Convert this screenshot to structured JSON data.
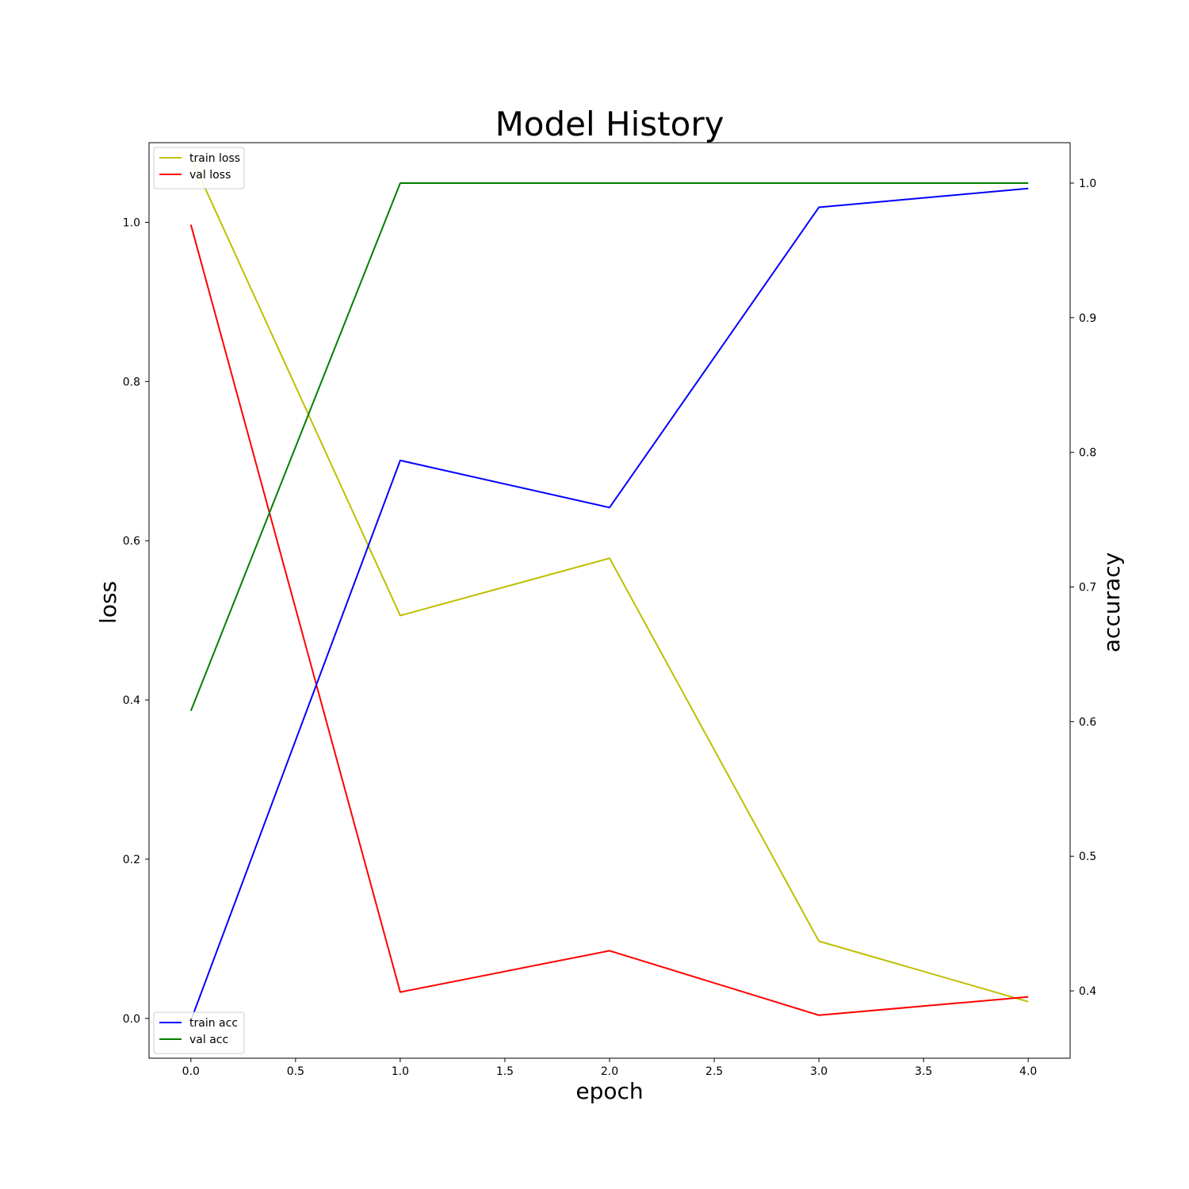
{
  "chart_data": {
    "type": "line",
    "title": "Model History",
    "xlabel": "epoch",
    "ylabel": "loss",
    "y2label": "accuracy",
    "x": [
      0,
      1,
      2,
      3,
      4
    ],
    "xlim": [
      -0.2,
      4.2
    ],
    "ylim": [
      -0.05,
      1.1
    ],
    "y2lim": [
      0.35,
      1.03
    ],
    "xticks": [
      "0.0",
      "0.5",
      "1.0",
      "1.5",
      "2.0",
      "2.5",
      "3.0",
      "3.5",
      "4.0"
    ],
    "yticks": [
      "0.0",
      "0.2",
      "0.4",
      "0.6",
      "0.8",
      "1.0"
    ],
    "y2ticks": [
      "0.4",
      "0.5",
      "0.6",
      "0.7",
      "0.8",
      "0.9",
      "1.0"
    ],
    "grid": false,
    "series": [
      {
        "name": "train loss",
        "axis": "left",
        "color": "#bfbf00",
        "values": [
          1.082,
          0.506,
          0.578,
          0.097,
          0.021
        ]
      },
      {
        "name": "val loss",
        "axis": "left",
        "color": "#ff0000",
        "values": [
          0.997,
          0.033,
          0.085,
          0.004,
          0.027
        ]
      },
      {
        "name": "train acc",
        "axis": "right",
        "color": "#0000ff",
        "values": [
          0.378,
          0.794,
          0.759,
          0.982,
          0.996
        ]
      },
      {
        "name": "val acc",
        "axis": "right",
        "color": "#008000",
        "values": [
          0.608,
          1.0,
          1.0,
          1.0,
          1.0
        ]
      }
    ],
    "legends": [
      {
        "placement": "upper-left",
        "entries": [
          "train loss",
          "val loss"
        ]
      },
      {
        "placement": "lower-left",
        "entries": [
          "train acc",
          "val acc"
        ]
      }
    ]
  }
}
